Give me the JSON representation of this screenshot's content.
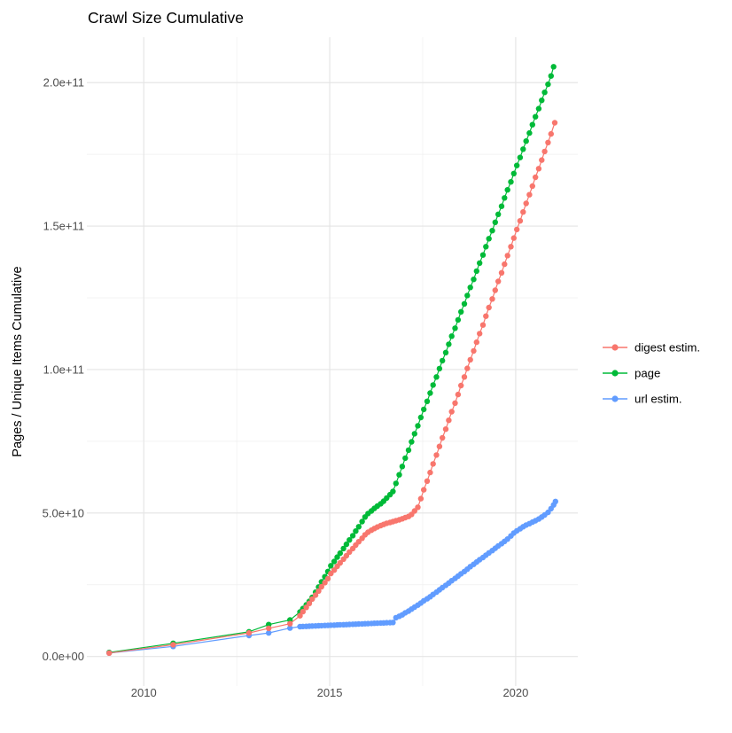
{
  "title": "Crawl Size Cumulative",
  "axes": {
    "y_label": "Pages / Unique Items Cumulative",
    "x_label": "",
    "y_ticks": [
      "0.0e+00",
      "5.0e+10",
      "1.0e+11",
      "1.5e+11",
      "2.0e+11"
    ],
    "x_ticks": [
      "2010",
      "2015",
      "2020"
    ]
  },
  "legend": {
    "items": [
      {
        "label": "digest estim.",
        "color": "#F8766D"
      },
      {
        "label": "page",
        "color": "#00BA38"
      },
      {
        "label": "url estim.",
        "color": "#619CFF"
      }
    ]
  },
  "colors": {
    "background": "#FFFFFF",
    "grid_major": "#E4E4E4",
    "grid_minor": "#EFEFEF",
    "tick_text": "#4D4D4D",
    "title_text": "#000000"
  },
  "chart_data": {
    "type": "scatter",
    "title": "Crawl Size Cumulative",
    "xlabel": "",
    "ylabel": "Pages / Unique Items Cumulative",
    "x_unit": "year (crawl date)",
    "value_unit_multiplier": 1000000000,
    "value_unit_note": "series point values are in billions (1e9) of pages / unique items",
    "xlim": [
      2008.47,
      2021.67
    ],
    "ylim_billions": [
      -10.3,
      215.8
    ],
    "x_major_ticks": [
      2010,
      2015,
      2020
    ],
    "x_minor_ticks": [
      2012.5,
      2017.5
    ],
    "y_major_ticks_billions": [
      0,
      50,
      100,
      150,
      200
    ],
    "y_minor_ticks_billions": [
      25,
      75,
      125,
      175
    ],
    "grid": true,
    "legend_position": "right",
    "marker": "point-with-line",
    "draw_order": [
      1,
      2,
      0
    ],
    "series": [
      {
        "name": "digest estim.",
        "color": "#F8766D",
        "points": [
          [
            2009.07,
            1.2
          ],
          [
            2010.79,
            4.1
          ],
          [
            2012.83,
            8.2
          ],
          [
            2013.36,
            9.8
          ],
          [
            2013.93,
            11.4
          ],
          [
            2014.2,
            14.2
          ],
          [
            2014.28,
            15.6
          ],
          [
            2014.37,
            17.1
          ],
          [
            2014.45,
            18.5
          ],
          [
            2014.53,
            20
          ],
          [
            2014.62,
            21.4
          ],
          [
            2014.7,
            22.8
          ],
          [
            2014.78,
            24.3
          ],
          [
            2014.87,
            25.7
          ],
          [
            2014.95,
            27.1
          ],
          [
            2015.03,
            28.9
          ],
          [
            2015.12,
            30.1
          ],
          [
            2015.2,
            31.4
          ],
          [
            2015.28,
            32.6
          ],
          [
            2015.37,
            33.9
          ],
          [
            2015.45,
            35.1
          ],
          [
            2015.53,
            36.4
          ],
          [
            2015.62,
            37.6
          ],
          [
            2015.7,
            38.8
          ],
          [
            2015.78,
            40
          ],
          [
            2015.87,
            41.2
          ],
          [
            2015.95,
            42.4
          ],
          [
            2016.03,
            43.3
          ],
          [
            2016.12,
            44
          ],
          [
            2016.2,
            44.6
          ],
          [
            2016.28,
            45.1
          ],
          [
            2016.37,
            45.6
          ],
          [
            2016.45,
            46
          ],
          [
            2016.53,
            46.4
          ],
          [
            2016.62,
            46.7
          ],
          [
            2016.7,
            47
          ],
          [
            2016.78,
            47.3
          ],
          [
            2016.87,
            47.6
          ],
          [
            2016.95,
            48
          ],
          [
            2017.03,
            48.4
          ],
          [
            2017.12,
            48.8
          ],
          [
            2017.2,
            49.5
          ],
          [
            2017.28,
            50.7
          ],
          [
            2017.37,
            52
          ],
          [
            2017.45,
            55
          ],
          [
            2017.53,
            58.1
          ],
          [
            2017.62,
            61.1
          ],
          [
            2017.7,
            64.1
          ],
          [
            2017.78,
            67.1
          ],
          [
            2017.87,
            70.2
          ],
          [
            2017.95,
            73.2
          ],
          [
            2018.03,
            76.2
          ],
          [
            2018.12,
            79.2
          ],
          [
            2018.2,
            82.3
          ],
          [
            2018.28,
            85.3
          ],
          [
            2018.37,
            88.3
          ],
          [
            2018.45,
            91.3
          ],
          [
            2018.53,
            94.4
          ],
          [
            2018.62,
            97.4
          ],
          [
            2018.7,
            100.4
          ],
          [
            2018.78,
            103.4
          ],
          [
            2018.87,
            106.5
          ],
          [
            2018.95,
            109.5
          ],
          [
            2019.03,
            112.5
          ],
          [
            2019.12,
            115.5
          ],
          [
            2019.2,
            118.6
          ],
          [
            2019.28,
            121.6
          ],
          [
            2019.37,
            124.6
          ],
          [
            2019.45,
            127.6
          ],
          [
            2019.53,
            130.7
          ],
          [
            2019.62,
            133.7
          ],
          [
            2019.7,
            136.7
          ],
          [
            2019.78,
            139.7
          ],
          [
            2019.87,
            142.8
          ],
          [
            2019.95,
            145.8
          ],
          [
            2020.03,
            148.8
          ],
          [
            2020.12,
            151.8
          ],
          [
            2020.2,
            154.9
          ],
          [
            2020.28,
            157.9
          ],
          [
            2020.37,
            160.9
          ],
          [
            2020.45,
            163.9
          ],
          [
            2020.53,
            167
          ],
          [
            2020.62,
            170
          ],
          [
            2020.7,
            173
          ],
          [
            2020.78,
            176
          ],
          [
            2020.87,
            179.1
          ],
          [
            2020.95,
            182.1
          ],
          [
            2021.05,
            186
          ]
        ]
      },
      {
        "name": "page",
        "color": "#00BA38",
        "points": [
          [
            2009.07,
            1.4
          ],
          [
            2010.79,
            4.6
          ],
          [
            2012.83,
            8.6
          ],
          [
            2013.36,
            11.1
          ],
          [
            2013.93,
            12.7
          ],
          [
            2014.2,
            15.5
          ],
          [
            2014.28,
            16.7
          ],
          [
            2014.37,
            18
          ],
          [
            2014.45,
            19.2
          ],
          [
            2014.53,
            20.6
          ],
          [
            2014.62,
            22.4
          ],
          [
            2014.7,
            24.2
          ],
          [
            2014.78,
            26
          ],
          [
            2014.87,
            27.8
          ],
          [
            2014.95,
            29.6
          ],
          [
            2015.03,
            31.6
          ],
          [
            2015.12,
            33.1
          ],
          [
            2015.2,
            34.6
          ],
          [
            2015.28,
            36
          ],
          [
            2015.37,
            37.6
          ],
          [
            2015.45,
            39.1
          ],
          [
            2015.53,
            40.6
          ],
          [
            2015.62,
            42.1
          ],
          [
            2015.7,
            43.7
          ],
          [
            2015.78,
            45.2
          ],
          [
            2015.87,
            47
          ],
          [
            2015.95,
            48.6
          ],
          [
            2016.03,
            49.8
          ],
          [
            2016.12,
            50.7
          ],
          [
            2016.2,
            51.6
          ],
          [
            2016.28,
            52.4
          ],
          [
            2016.37,
            53.2
          ],
          [
            2016.45,
            54.1
          ],
          [
            2016.53,
            55.2
          ],
          [
            2016.62,
            56.4
          ],
          [
            2016.7,
            57.5
          ],
          [
            2016.78,
            60.3
          ],
          [
            2016.87,
            63.3
          ],
          [
            2016.95,
            66.2
          ],
          [
            2017.03,
            69.1
          ],
          [
            2017.12,
            71.9
          ],
          [
            2017.2,
            74.8
          ],
          [
            2017.28,
            77.6
          ],
          [
            2017.37,
            80.4
          ],
          [
            2017.45,
            83.3
          ],
          [
            2017.53,
            86.1
          ],
          [
            2017.62,
            88.9
          ],
          [
            2017.7,
            91.8
          ],
          [
            2017.78,
            94.6
          ],
          [
            2017.87,
            97.4
          ],
          [
            2017.95,
            100.3
          ],
          [
            2018.03,
            103.1
          ],
          [
            2018.12,
            105.9
          ],
          [
            2018.2,
            108.8
          ],
          [
            2018.28,
            111.6
          ],
          [
            2018.37,
            114.4
          ],
          [
            2018.45,
            117.3
          ],
          [
            2018.53,
            120.1
          ],
          [
            2018.62,
            122.9
          ],
          [
            2018.7,
            125.8
          ],
          [
            2018.78,
            128.6
          ],
          [
            2018.87,
            131.4
          ],
          [
            2018.95,
            134.3
          ],
          [
            2019.03,
            137.1
          ],
          [
            2019.12,
            139.9
          ],
          [
            2019.2,
            142.8
          ],
          [
            2019.28,
            145.6
          ],
          [
            2019.37,
            148.4
          ],
          [
            2019.45,
            151.3
          ],
          [
            2019.53,
            154.1
          ],
          [
            2019.62,
            156.9
          ],
          [
            2019.7,
            159.8
          ],
          [
            2019.78,
            162.6
          ],
          [
            2019.87,
            165.4
          ],
          [
            2019.95,
            168.3
          ],
          [
            2020.03,
            171.1
          ],
          [
            2020.12,
            173.9
          ],
          [
            2020.2,
            176.8
          ],
          [
            2020.28,
            179.6
          ],
          [
            2020.37,
            182.4
          ],
          [
            2020.45,
            185.3
          ],
          [
            2020.53,
            188.1
          ],
          [
            2020.62,
            190.9
          ],
          [
            2020.7,
            193.8
          ],
          [
            2020.78,
            196.6
          ],
          [
            2020.87,
            199.4
          ],
          [
            2020.95,
            202.3
          ],
          [
            2021.02,
            205.5
          ]
        ]
      },
      {
        "name": "url estim.",
        "color": "#619CFF",
        "points": [
          [
            2009.07,
            1.2
          ],
          [
            2010.79,
            3.5
          ],
          [
            2012.83,
            7.3
          ],
          [
            2013.36,
            8.2
          ],
          [
            2013.93,
            9.9
          ],
          [
            2014.2,
            10.4
          ],
          [
            2014.28,
            10.45
          ],
          [
            2014.37,
            10.5
          ],
          [
            2014.45,
            10.55
          ],
          [
            2014.53,
            10.6
          ],
          [
            2014.62,
            10.64
          ],
          [
            2014.7,
            10.69
          ],
          [
            2014.78,
            10.74
          ],
          [
            2014.87,
            10.79
          ],
          [
            2014.95,
            10.84
          ],
          [
            2015.03,
            10.88
          ],
          [
            2015.12,
            10.93
          ],
          [
            2015.2,
            10.98
          ],
          [
            2015.28,
            11.03
          ],
          [
            2015.37,
            11.08
          ],
          [
            2015.45,
            11.12
          ],
          [
            2015.53,
            11.17
          ],
          [
            2015.62,
            11.22
          ],
          [
            2015.7,
            11.27
          ],
          [
            2015.78,
            11.32
          ],
          [
            2015.87,
            11.36
          ],
          [
            2015.95,
            11.41
          ],
          [
            2016.03,
            11.46
          ],
          [
            2016.12,
            11.51
          ],
          [
            2016.2,
            11.56
          ],
          [
            2016.28,
            11.6
          ],
          [
            2016.37,
            11.65
          ],
          [
            2016.45,
            11.7
          ],
          [
            2016.53,
            11.75
          ],
          [
            2016.62,
            11.8
          ],
          [
            2016.7,
            11.85
          ],
          [
            2016.78,
            13.5
          ],
          [
            2016.87,
            14
          ],
          [
            2016.95,
            14.5
          ],
          [
            2017.03,
            15.2
          ],
          [
            2017.12,
            15.8
          ],
          [
            2017.2,
            16.5
          ],
          [
            2017.28,
            17.2
          ],
          [
            2017.37,
            17.9
          ],
          [
            2017.45,
            18.6
          ],
          [
            2017.53,
            19.4
          ],
          [
            2017.62,
            20.1
          ],
          [
            2017.7,
            20.8
          ],
          [
            2017.78,
            21.6
          ],
          [
            2017.87,
            22.4
          ],
          [
            2017.95,
            23.2
          ],
          [
            2018.03,
            24
          ],
          [
            2018.12,
            24.8
          ],
          [
            2018.2,
            25.6
          ],
          [
            2018.28,
            26.4
          ],
          [
            2018.37,
            27.2
          ],
          [
            2018.45,
            28
          ],
          [
            2018.53,
            28.8
          ],
          [
            2018.62,
            29.6
          ],
          [
            2018.7,
            30.4
          ],
          [
            2018.78,
            31.3
          ],
          [
            2018.87,
            32.1
          ],
          [
            2018.95,
            32.9
          ],
          [
            2019.03,
            33.7
          ],
          [
            2019.12,
            34.5
          ],
          [
            2019.2,
            35.3
          ],
          [
            2019.28,
            36.1
          ],
          [
            2019.37,
            36.9
          ],
          [
            2019.45,
            37.7
          ],
          [
            2019.53,
            38.5
          ],
          [
            2019.62,
            39.3
          ],
          [
            2019.7,
            40.1
          ],
          [
            2019.78,
            40.9
          ],
          [
            2019.87,
            42
          ],
          [
            2019.95,
            43
          ],
          [
            2020.03,
            43.8
          ],
          [
            2020.12,
            44.5
          ],
          [
            2020.2,
            45.2
          ],
          [
            2020.28,
            45.8
          ],
          [
            2020.37,
            46.3
          ],
          [
            2020.45,
            46.8
          ],
          [
            2020.53,
            47.3
          ],
          [
            2020.62,
            47.9
          ],
          [
            2020.7,
            48.6
          ],
          [
            2020.78,
            49.3
          ],
          [
            2020.87,
            50.2
          ],
          [
            2020.95,
            51.5
          ],
          [
            2021.02,
            52.8
          ],
          [
            2021.07,
            54
          ]
        ]
      }
    ]
  }
}
